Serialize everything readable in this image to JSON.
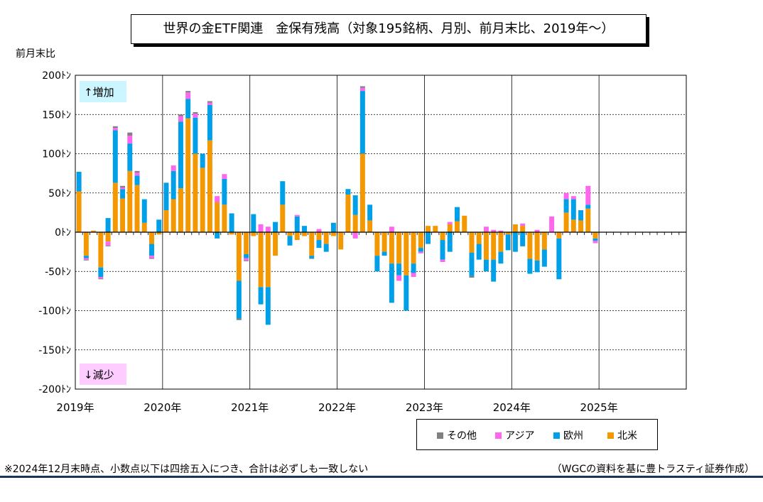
{
  "chart_data": {
    "type": "bar",
    "stacked": true,
    "title": "世界の金ETF関連　金保有残高（対象195銘柄、月別、前月末比、2019年～）",
    "ylabel": "前月末比",
    "ylim": [
      -200,
      200
    ],
    "yticks": [
      200,
      150,
      100,
      50,
      0,
      -50,
      -100,
      -150,
      -200
    ],
    "ytick_labels": [
      "200ﾄﾝ",
      "150ﾄﾝ",
      "100ﾄﾝ",
      "50ﾄﾝ",
      "0ﾄﾝ",
      "-50ﾄﾝ",
      "-100ﾄﾝ",
      "-150ﾄﾝ",
      "-200ﾄﾝ"
    ],
    "year_labels": [
      "2019年",
      "2020年",
      "2021年",
      "2022年",
      "2023年",
      "2024年",
      "2025年"
    ],
    "months_total": 84,
    "annotation_up": "↑増加",
    "annotation_down": "↓減少",
    "grid": true,
    "legend_position": "bottom-right",
    "series": [
      {
        "name": "北米",
        "color": "#f39800",
        "values": [
          52,
          -30,
          2,
          -45,
          -12,
          63,
          43,
          78,
          60,
          12,
          -15,
          -3,
          28,
          42,
          56,
          145,
          100,
          82,
          117,
          38,
          35,
          -3,
          -62,
          -28,
          -5,
          -70,
          -70,
          -30,
          35,
          -5,
          -10,
          -5,
          -30,
          -10,
          -15,
          -5,
          -22,
          48,
          22,
          100,
          15,
          -30,
          -25,
          -40,
          -40,
          -55,
          -40,
          -20,
          8,
          8,
          -10,
          10,
          14,
          21,
          -26,
          -15,
          -35,
          -35,
          -25,
          -3,
          10,
          8,
          -34,
          -36,
          -22,
          0,
          -8,
          25,
          16,
          15,
          30,
          -8,
          0,
          0,
          0,
          0,
          0,
          0,
          0,
          0,
          0,
          0,
          0,
          0
        ]
      },
      {
        "name": "欧州",
        "color": "#00a0e9",
        "values": [
          25,
          -3,
          0,
          -12,
          18,
          67,
          12,
          35,
          12,
          30,
          -15,
          16,
          35,
          36,
          85,
          25,
          46,
          18,
          45,
          -8,
          33,
          24,
          -48,
          -5,
          23,
          -22,
          -48,
          13,
          30,
          -12,
          20,
          8,
          -3,
          -10,
          -10,
          12,
          0,
          7,
          25,
          80,
          20,
          -20,
          -5,
          -50,
          -15,
          -45,
          -12,
          -5,
          -15,
          0,
          -25,
          -25,
          18,
          0,
          -30,
          -20,
          -15,
          -28,
          -15,
          -20,
          -25,
          -18,
          -19,
          -15,
          -22,
          0,
          -52,
          17,
          26,
          13,
          5,
          -3,
          0,
          0,
          0,
          0,
          0,
          0,
          0,
          0,
          0,
          0,
          0,
          0
        ]
      },
      {
        "name": "アジア",
        "color": "#ff66ee",
        "values": [
          0,
          -2,
          0,
          -2,
          -5,
          3,
          2,
          10,
          4,
          0,
          -3,
          0,
          0,
          7,
          7,
          8,
          5,
          0,
          3,
          8,
          6,
          0,
          0,
          -3,
          0,
          10,
          7,
          0,
          0,
          0,
          2,
          0,
          0,
          4,
          0,
          0,
          0,
          0,
          -8,
          4,
          0,
          0,
          0,
          7,
          -7,
          0,
          -5,
          -2,
          0,
          0,
          -3,
          3,
          0,
          0,
          0,
          0,
          7,
          3,
          2,
          0,
          0,
          3,
          0,
          3,
          0,
          20,
          0,
          8,
          4,
          0,
          24,
          -3,
          0,
          0,
          0,
          0,
          0,
          0,
          0,
          0,
          0,
          0,
          0,
          0
        ]
      },
      {
        "name": "その他",
        "color": "#808080",
        "values": [
          0,
          -1,
          0,
          -1,
          -1,
          2,
          2,
          4,
          2,
          0,
          -1,
          0,
          0,
          0,
          2,
          2,
          2,
          0,
          2,
          0,
          0,
          0,
          -2,
          -1,
          0,
          0,
          0,
          0,
          0,
          0,
          0,
          0,
          -1,
          0,
          0,
          0,
          0,
          0,
          0,
          2,
          0,
          0,
          0,
          0,
          0,
          0,
          0,
          0,
          0,
          0,
          0,
          0,
          0,
          0,
          -2,
          0,
          0,
          0,
          0,
          0,
          0,
          0,
          0,
          0,
          0,
          0,
          0,
          0,
          0,
          0,
          0,
          0,
          0,
          0,
          0,
          0,
          0,
          0,
          0,
          0,
          0,
          0,
          0,
          0
        ]
      }
    ]
  },
  "legend_order": [
    "その他",
    "アジア",
    "欧州",
    "北米"
  ],
  "footnote": "※2024年12月末時点、小数点以下は四捨五入につき、合計は必ずしも一致しない",
  "source": "（WGCの資料を基に豊トラスティ証券作成）"
}
